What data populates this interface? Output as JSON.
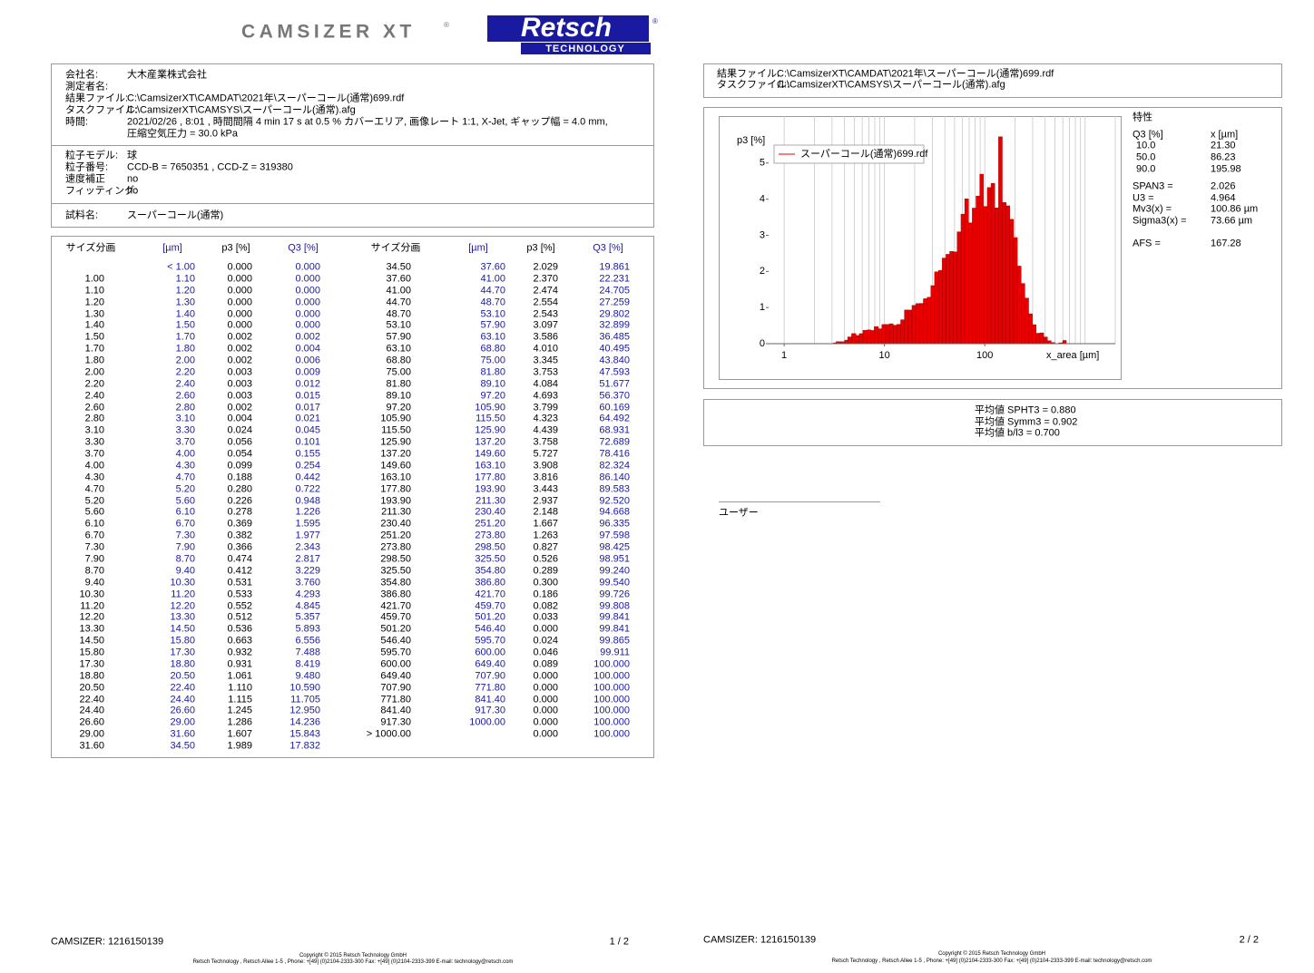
{
  "logo": {
    "product": "CAMSIZER XT",
    "mark": "®",
    "brand": "Retsch",
    "brand_sub": "TECHNOLOGY"
  },
  "info": {
    "sections": [
      [
        [
          "会社名:",
          "大木産業株式会社"
        ],
        [
          "測定者名:"
        ],
        [
          "結果ファイル:",
          "C:\\CamsizerXT\\CAMDAT\\2021年\\スーパーコール(通常)699.rdf"
        ],
        [
          "タスクファイル:",
          "C:\\CamsizerXT\\CAMSYS\\スーパーコール(通常).afg"
        ],
        [
          "時間:",
          "2021/02/26 ,   8:01 ,  時間間隔  4 min 17 s at 0.5 % カバーエリア, 画像レート 1:1, X-Jet, ギャップ幅 = 4.0 mm,",
          "圧縮空気圧力 = 30.0 kPa"
        ]
      ],
      [
        [
          "粒子モデル:",
          "球"
        ],
        [
          "粒子番号:",
          "CCD-B  = 7650351 ,  CCD-Z  = 319380"
        ],
        [
          "速度補正",
          "no"
        ],
        [
          "フィッティング:",
          "no"
        ]
      ],
      [
        [
          "試料名:",
          "スーパーコール(通常)"
        ]
      ]
    ]
  },
  "table": {
    "header": [
      "サイズ分画",
      "[µm]",
      "p3 [%]",
      "Q3 [%]"
    ],
    "left": [
      [
        null,
        "< 1.00",
        "0.000",
        "0.000"
      ],
      [
        "1.00",
        "1.10",
        "0.000",
        "0.000"
      ],
      [
        "1.10",
        "1.20",
        "0.000",
        "0.000"
      ],
      [
        "1.20",
        "1.30",
        "0.000",
        "0.000"
      ],
      [
        "1.30",
        "1.40",
        "0.000",
        "0.000"
      ],
      [
        "1.40",
        "1.50",
        "0.000",
        "0.000"
      ],
      [
        "1.50",
        "1.70",
        "0.002",
        "0.002"
      ],
      [
        "1.70",
        "1.80",
        "0.002",
        "0.004"
      ],
      [
        "1.80",
        "2.00",
        "0.002",
        "0.006"
      ],
      [
        "2.00",
        "2.20",
        "0.003",
        "0.009"
      ],
      [
        "2.20",
        "2.40",
        "0.003",
        "0.012"
      ],
      [
        "2.40",
        "2.60",
        "0.003",
        "0.015"
      ],
      [
        "2.60",
        "2.80",
        "0.002",
        "0.017"
      ],
      [
        "2.80",
        "3.10",
        "0.004",
        "0.021"
      ],
      [
        "3.10",
        "3.30",
        "0.024",
        "0.045"
      ],
      [
        "3.30",
        "3.70",
        "0.056",
        "0.101"
      ],
      [
        "3.70",
        "4.00",
        "0.054",
        "0.155"
      ],
      [
        "4.00",
        "4.30",
        "0.099",
        "0.254"
      ],
      [
        "4.30",
        "4.70",
        "0.188",
        "0.442"
      ],
      [
        "4.70",
        "5.20",
        "0.280",
        "0.722"
      ],
      [
        "5.20",
        "5.60",
        "0.226",
        "0.948"
      ],
      [
        "5.60",
        "6.10",
        "0.278",
        "1.226"
      ],
      [
        "6.10",
        "6.70",
        "0.369",
        "1.595"
      ],
      [
        "6.70",
        "7.30",
        "0.382",
        "1.977"
      ],
      [
        "7.30",
        "7.90",
        "0.366",
        "2.343"
      ],
      [
        "7.90",
        "8.70",
        "0.474",
        "2.817"
      ],
      [
        "8.70",
        "9.40",
        "0.412",
        "3.229"
      ],
      [
        "9.40",
        "10.30",
        "0.531",
        "3.760"
      ],
      [
        "10.30",
        "11.20",
        "0.533",
        "4.293"
      ],
      [
        "11.20",
        "12.20",
        "0.552",
        "4.845"
      ],
      [
        "12.20",
        "13.30",
        "0.512",
        "5.357"
      ],
      [
        "13.30",
        "14.50",
        "0.536",
        "5.893"
      ],
      [
        "14.50",
        "15.80",
        "0.663",
        "6.556"
      ],
      [
        "15.80",
        "17.30",
        "0.932",
        "7.488"
      ],
      [
        "17.30",
        "18.80",
        "0.931",
        "8.419"
      ],
      [
        "18.80",
        "20.50",
        "1.061",
        "9.480"
      ],
      [
        "20.50",
        "22.40",
        "1.110",
        "10.590"
      ],
      [
        "22.40",
        "24.40",
        "1.115",
        "11.705"
      ],
      [
        "24.40",
        "26.60",
        "1.245",
        "12.950"
      ],
      [
        "26.60",
        "29.00",
        "1.286",
        "14.236"
      ],
      [
        "29.00",
        "31.60",
        "1.607",
        "15.843"
      ],
      [
        "31.60",
        "34.50",
        "1.989",
        "17.832"
      ]
    ],
    "right": [
      [
        "34.50",
        "37.60",
        "2.029",
        "19.861"
      ],
      [
        "37.60",
        "41.00",
        "2.370",
        "22.231"
      ],
      [
        "41.00",
        "44.70",
        "2.474",
        "24.705"
      ],
      [
        "44.70",
        "48.70",
        "2.554",
        "27.259"
      ],
      [
        "48.70",
        "53.10",
        "2.543",
        "29.802"
      ],
      [
        "53.10",
        "57.90",
        "3.097",
        "32.899"
      ],
      [
        "57.90",
        "63.10",
        "3.586",
        "36.485"
      ],
      [
        "63.10",
        "68.80",
        "4.010",
        "40.495"
      ],
      [
        "68.80",
        "75.00",
        "3.345",
        "43.840"
      ],
      [
        "75.00",
        "81.80",
        "3.753",
        "47.593"
      ],
      [
        "81.80",
        "89.10",
        "4.084",
        "51.677"
      ],
      [
        "89.10",
        "97.20",
        "4.693",
        "56.370"
      ],
      [
        "97.20",
        "105.90",
        "3.799",
        "60.169"
      ],
      [
        "105.90",
        "115.50",
        "4.323",
        "64.492"
      ],
      [
        "115.50",
        "125.90",
        "4.439",
        "68.931"
      ],
      [
        "125.90",
        "137.20",
        "3.758",
        "72.689"
      ],
      [
        "137.20",
        "149.60",
        "5.727",
        "78.416"
      ],
      [
        "149.60",
        "163.10",
        "3.908",
        "82.324"
      ],
      [
        "163.10",
        "177.80",
        "3.816",
        "86.140"
      ],
      [
        "177.80",
        "193.90",
        "3.443",
        "89.583"
      ],
      [
        "193.90",
        "211.30",
        "2.937",
        "92.520"
      ],
      [
        "211.30",
        "230.40",
        "2.148",
        "94.668"
      ],
      [
        "230.40",
        "251.20",
        "1.667",
        "96.335"
      ],
      [
        "251.20",
        "273.80",
        "1.263",
        "97.598"
      ],
      [
        "273.80",
        "298.50",
        "0.827",
        "98.425"
      ],
      [
        "298.50",
        "325.50",
        "0.526",
        "98.951"
      ],
      [
        "325.50",
        "354.80",
        "0.289",
        "99.240"
      ],
      [
        "354.80",
        "386.80",
        "0.300",
        "99.540"
      ],
      [
        "386.80",
        "421.70",
        "0.186",
        "99.726"
      ],
      [
        "421.70",
        "459.70",
        "0.082",
        "99.808"
      ],
      [
        "459.70",
        "501.20",
        "0.033",
        "99.841"
      ],
      [
        "501.20",
        "546.40",
        "0.000",
        "99.841"
      ],
      [
        "546.40",
        "595.70",
        "0.024",
        "99.865"
      ],
      [
        "595.70",
        "600.00",
        "0.046",
        "99.911"
      ],
      [
        "600.00",
        "649.40",
        "0.089",
        "100.000"
      ],
      [
        "649.40",
        "707.90",
        "0.000",
        "100.000"
      ],
      [
        "707.90",
        "771.80",
        "0.000",
        "100.000"
      ],
      [
        "771.80",
        "841.40",
        "0.000",
        "100.000"
      ],
      [
        "841.40",
        "917.30",
        "0.000",
        "100.000"
      ],
      [
        "917.30",
        "1000.00",
        "0.000",
        "100.000"
      ],
      [
        "> 1000.00",
        null,
        "0.000",
        "100.000"
      ]
    ]
  },
  "files": [
    [
      "結果ファイル:",
      "C:\\CamsizerXT\\CAMDAT\\2021年\\スーパーコール(通常)699.rdf"
    ],
    [
      "タスクファイル:",
      "C:\\CamsizerXT\\CAMSYS\\スーパーコール(通常).afg"
    ]
  ],
  "chart_data": {
    "type": "histogram",
    "y_label": "p3 [%]",
    "x_label": "x_area [µm]",
    "legend": "スーパーコール(通常)699.rdf",
    "color": "#e80000",
    "edge_color": "#900000",
    "log_x": true,
    "xlim": [
      0.7,
      2000
    ],
    "xticks": [
      1,
      10,
      100
    ],
    "ylim": [
      0,
      6.3
    ],
    "yticks": [
      0,
      1,
      2,
      3,
      4,
      5
    ],
    "xgrid": [
      1,
      2,
      3,
      4,
      5,
      6,
      7,
      8,
      9,
      10,
      20,
      30,
      40,
      50,
      60,
      70,
      80,
      90,
      100,
      200,
      300,
      400,
      500,
      600,
      700,
      800,
      900,
      1000,
      2000
    ]
  },
  "stats": {
    "title": "特性",
    "header": [
      "Q3 [%]",
      "x [µm]"
    ],
    "q": [
      [
        "10.0",
        "21.30"
      ],
      [
        "50.0",
        "86.23"
      ],
      [
        "90.0",
        "195.98"
      ]
    ],
    "params": [
      [
        "SPAN3 =",
        "2.026"
      ],
      [
        "U3 =",
        "4.964"
      ],
      [
        "Mv3(x) =",
        "100.86 µm"
      ],
      [
        "Sigma3(x) =",
        "73.66 µm"
      ]
    ],
    "afs": [
      "AFS =",
      "167.28"
    ]
  },
  "means": [
    "平均値 SPHT3 = 0.880",
    "平均値 Symm3 = 0.902",
    "平均値 b/l3 = 0.700"
  ],
  "user": "ユーザー",
  "footer": {
    "device": "CAMSIZER:  1216150139",
    "page1": "1 / 2",
    "page2": "2 / 2",
    "copyright": "Copyright © 2015 Retsch Technology GmbH",
    "address": "Retsch Technology , Retsch Allee 1-5 ,  Phone:  +[49] (0)2104-2333-300   Fax:  +[49] (0)2104-2333-399   E-mail: technology@retsch.com"
  }
}
